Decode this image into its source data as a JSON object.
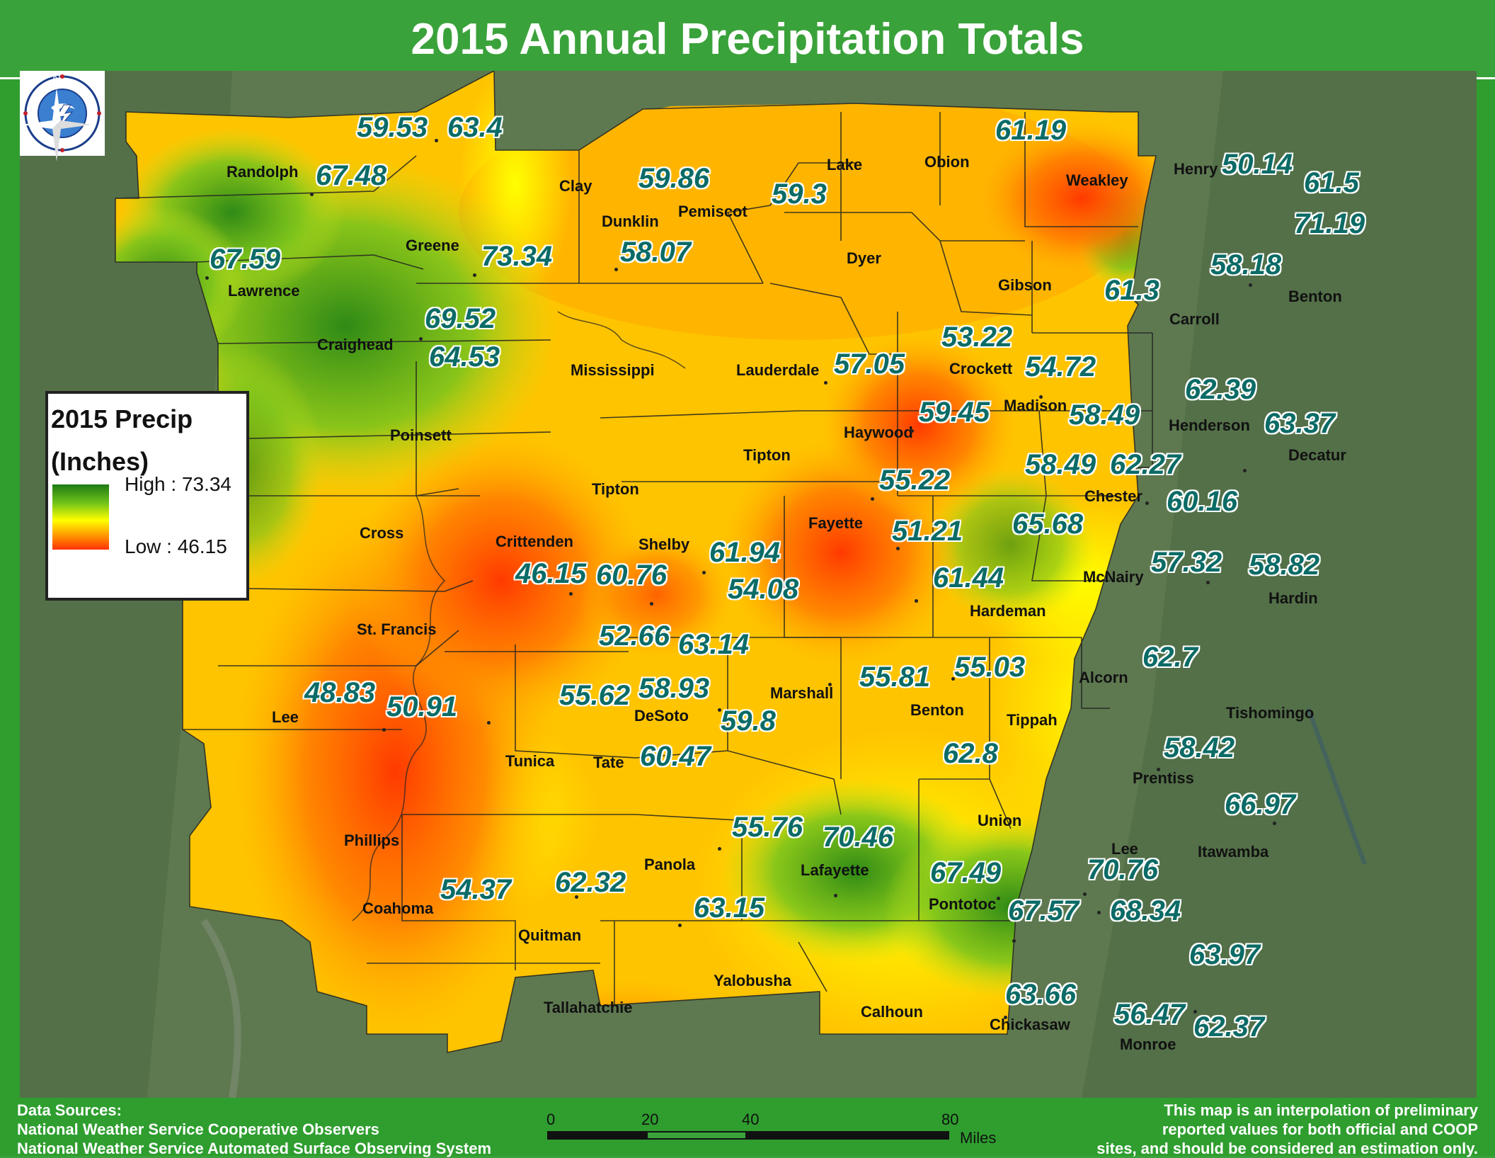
{
  "title": "2015 Annual Precipitation Totals",
  "legend": {
    "title_line1": "2015 Precip",
    "title_line2": "(Inches)",
    "high_label": "High : 73.34",
    "low_label": "Low : 46.15",
    "high_color": "#1d7a14",
    "low_color": "#ff3300"
  },
  "counties": [
    "Randolph",
    "Clay",
    "Greene",
    "Lawrence",
    "Craighead",
    "Mississippi",
    "Poinsett",
    "Cross",
    "Crittenden",
    "St. Francis",
    "Lee",
    "Phillips",
    "Dunklin",
    "Pemiscot",
    "Lake",
    "Obion",
    "Weakley",
    "Henry",
    "Dyer",
    "Gibson",
    "Carroll",
    "Benton",
    "Lauderdale",
    "Crockett",
    "Madison",
    "Henderson",
    "Decatur",
    "Tipton",
    "Haywood",
    "Chester",
    "Tipton",
    "Shelby",
    "Fayette",
    "Hardeman",
    "McNairy",
    "Hardin",
    "Marshall",
    "Benton",
    "Tippah",
    "Alcorn",
    "Tishomingo",
    "DeSoto",
    "Tunica",
    "Tate",
    "Prentiss",
    "Union",
    "Lee",
    "Itawamba",
    "Panola",
    "Lafayette",
    "Pontotoc",
    "Coahoma",
    "Quitman",
    "Yalobusha",
    "Tallahatchie",
    "Calhoun",
    "Chickasaw",
    "Monroe"
  ],
  "values": [
    "59.53",
    "63.4",
    "67.48",
    "59.86",
    "59.3",
    "61.19",
    "50.14",
    "61.5",
    "71.19",
    "67.59",
    "73.34",
    "58.07",
    "58.18",
    "61.3",
    "69.52",
    "64.53",
    "53.22",
    "54.72",
    "57.05",
    "62.39",
    "59.45",
    "58.49",
    "63.37",
    "58.49",
    "62.27",
    "55.22",
    "60.16",
    "65.68",
    "51.21",
    "61.94",
    "46.15",
    "60.76",
    "54.08",
    "57.32",
    "58.82",
    "61.44",
    "52.66",
    "63.14",
    "62.7",
    "55.81",
    "55.03",
    "48.83",
    "50.91",
    "55.62",
    "58.93",
    "59.8",
    "60.47",
    "58.42",
    "62.8",
    "66.97",
    "55.76",
    "70.46",
    "67.49",
    "70.76",
    "54.37",
    "62.32",
    "67.57",
    "68.34",
    "63.15",
    "63.97",
    "63.66",
    "56.47",
    "62.37"
  ],
  "scalebar": {
    "ticks": [
      "0",
      "20",
      "40",
      "80"
    ],
    "unit": "Miles"
  },
  "sources": {
    "heading": "Data Sources:",
    "line1": "National Weather Service Cooperative Observers",
    "line2": "National Weather Service Automated Surface Observing System"
  },
  "disclaimer": {
    "line1": "This map is an interpolation of preliminary",
    "line2": "reported values for both official and COOP",
    "line3": "sites, and should be considered an estimation only."
  },
  "logo_text": "NATIONAL WEATHER SERVICE",
  "north_label": "N"
}
